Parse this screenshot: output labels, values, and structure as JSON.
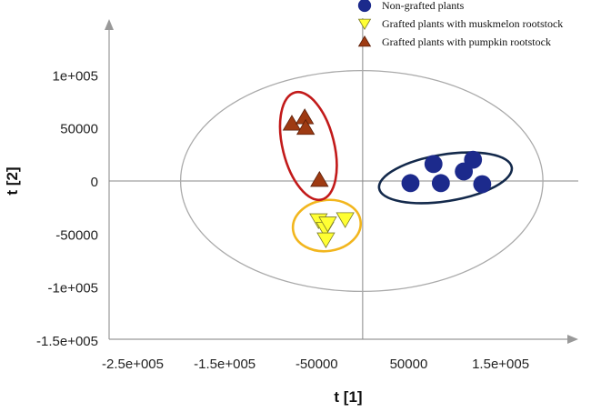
{
  "chart_data": {
    "type": "scatter",
    "xlabel": "t [1]",
    "ylabel": "t [2]",
    "xlim": [
      -250000,
      230000
    ],
    "ylim": [
      -150000,
      150000
    ],
    "x_ticks": [
      -250000,
      -150000,
      -50000,
      50000,
      150000
    ],
    "x_tick_labels": [
      "-2.5e+005",
      "-1.5e+005",
      "-50000",
      "50000",
      "1.5e+005"
    ],
    "y_ticks": [
      100000,
      50000,
      0,
      -50000,
      -100000,
      -150000
    ],
    "y_tick_labels": [
      "1e+005",
      "50000",
      "0",
      "-50000",
      "-1e+005",
      "-1.5e+005"
    ],
    "legend_position": "top-right",
    "hotelling_ellipse": {
      "cx": -1000,
      "cy": 0,
      "rx": 197000,
      "ry": 104000,
      "color": "#aaaaaa"
    },
    "series": [
      {
        "name": "Non-grafted plants",
        "marker": "circle",
        "color": "#1c2a8c",
        "points": [
          [
            52000,
            -2000
          ],
          [
            77000,
            16000
          ],
          [
            85000,
            -2000
          ],
          [
            110000,
            9000
          ],
          [
            120000,
            20000
          ],
          [
            130000,
            -3000
          ]
        ],
        "group_ellipse": {
          "cx": 90000,
          "cy": 3000,
          "rx": 73000,
          "ry": 22000,
          "angle": -9,
          "color": "#13294b"
        }
      },
      {
        "name": "Grafted plants with muskmelon rootstock",
        "marker": "triangle-down",
        "color": "#ffff33",
        "points": [
          [
            -48000,
            -37000
          ],
          [
            -41000,
            -45000
          ],
          [
            -38000,
            -40000
          ],
          [
            -40000,
            -55000
          ],
          [
            -19000,
            -36000
          ]
        ],
        "group_ellipse": {
          "cx": -39000,
          "cy": -42000,
          "rx": 37000,
          "ry": 24000,
          "angle": -8,
          "color": "#f2b61e"
        }
      },
      {
        "name": "Grafted plants with pumpkin rootstock",
        "marker": "triangle-up",
        "color": "#9e3a12",
        "points": [
          [
            -77000,
            54000
          ],
          [
            -63000,
            60000
          ],
          [
            -62000,
            50000
          ],
          [
            -47000,
            1000
          ]
        ],
        "group_ellipse": {
          "cx": -59000,
          "cy": 33000,
          "rx": 28000,
          "ry": 52000,
          "angle": -14,
          "color": "#c21a1a"
        }
      }
    ]
  }
}
